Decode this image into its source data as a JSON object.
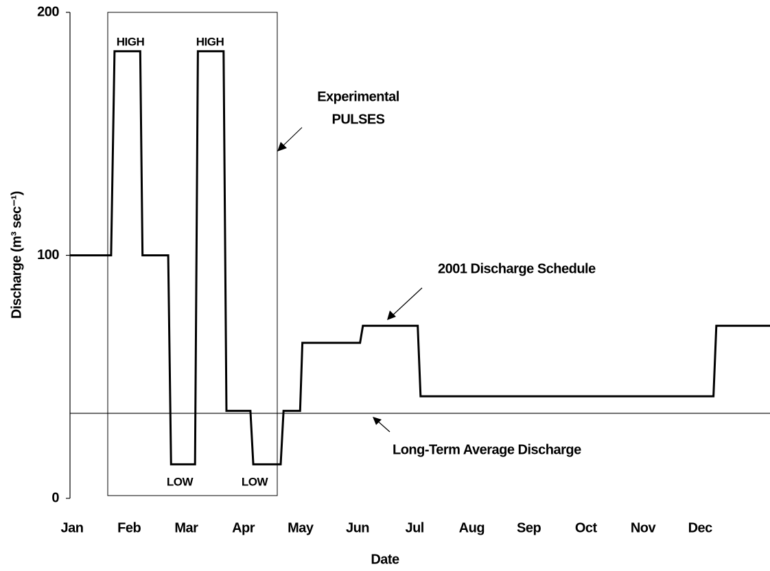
{
  "chart_data": {
    "type": "line",
    "x_label": "Date",
    "y_label": "Discharge (m³ sec⁻¹)",
    "xlim": [
      0,
      12.26
    ],
    "xticks": [
      {
        "value": 0,
        "label": "Jan"
      },
      {
        "value": 1,
        "label": "Feb"
      },
      {
        "value": 2,
        "label": "Mar"
      },
      {
        "value": 3,
        "label": "Apr"
      },
      {
        "value": 4,
        "label": "May"
      },
      {
        "value": 5,
        "label": "Jun"
      },
      {
        "value": 6,
        "label": "Jul"
      },
      {
        "value": 7,
        "label": "Aug"
      },
      {
        "value": 8,
        "label": "Sep"
      },
      {
        "value": 9,
        "label": "Oct"
      },
      {
        "value": 10,
        "label": "Nov"
      },
      {
        "value": 11,
        "label": "Dec"
      }
    ],
    "ylim": [
      0,
      200
    ],
    "yticks": [
      0,
      100,
      200
    ],
    "series": [
      {
        "name": "2001 Discharge Schedule",
        "color": "#000000",
        "x": [
          0,
          0.72,
          0.78,
          1.23,
          1.27,
          1.72,
          1.77,
          2.19,
          2.24,
          2.69,
          2.74,
          3.16,
          3.21,
          3.69,
          3.74,
          4.03,
          4.07,
          5.08,
          5.13,
          6.09,
          6.14,
          11.27,
          11.32,
          12.26
        ],
        "values": [
          100,
          100,
          184,
          184,
          100,
          100,
          14,
          14,
          184,
          184,
          36,
          36,
          14,
          14,
          36,
          36,
          64,
          64,
          71,
          71,
          42,
          42,
          71,
          71
        ]
      }
    ],
    "reference_line": {
      "name": "Long-Term Average Discharge",
      "value": 35
    },
    "annotations": [
      "Experimental",
      "PULSES",
      "HIGH",
      "HIGH",
      "LOW",
      "LOW"
    ]
  }
}
